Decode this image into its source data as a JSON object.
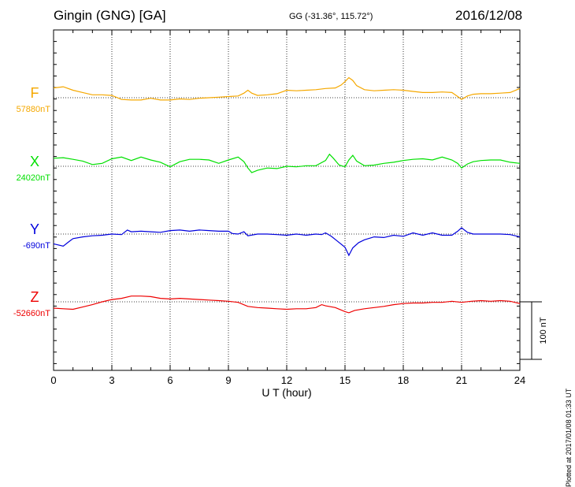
{
  "header": {
    "station": "Gingin (GNG)  [GA]",
    "coordinates": "GG (-31.36°, 115.72°)",
    "date": "2016/12/08"
  },
  "footer": {
    "plotted": "Plotted at 2017/01/08 01:33 UT"
  },
  "chart_data": {
    "type": "line",
    "title": "Gingin (GNG)  [GA]",
    "xlabel": "U T (hour)",
    "xlim": [
      0,
      24
    ],
    "x_ticks": [
      "0",
      "3",
      "6",
      "9",
      "12",
      "15",
      "18",
      "21",
      "24"
    ],
    "scale_bar": {
      "label": "100 nT",
      "value": 100
    },
    "grid": true,
    "series": [
      {
        "name": "F",
        "baseline_label": "57880nT",
        "baseline": 57880,
        "color": "#f5a800",
        "points": [
          [
            0,
            57897
          ],
          [
            0.5,
            57899
          ],
          [
            1,
            57893
          ],
          [
            1.5,
            57889
          ],
          [
            2,
            57885
          ],
          [
            2.5,
            57885
          ],
          [
            3,
            57884
          ],
          [
            3.5,
            57877
          ],
          [
            4,
            57876
          ],
          [
            4.5,
            57876
          ],
          [
            5,
            57879
          ],
          [
            5.5,
            57876
          ],
          [
            6,
            57876
          ],
          [
            6.5,
            57878
          ],
          [
            7,
            57877
          ],
          [
            7.5,
            57879
          ],
          [
            8,
            57880
          ],
          [
            8.5,
            57881
          ],
          [
            9,
            57882
          ],
          [
            9.5,
            57883
          ],
          [
            9.8,
            57888
          ],
          [
            10,
            57893
          ],
          [
            10.2,
            57888
          ],
          [
            10.5,
            57884
          ],
          [
            11,
            57885
          ],
          [
            11.5,
            57887
          ],
          [
            12,
            57893
          ],
          [
            12.5,
            57892
          ],
          [
            13,
            57893
          ],
          [
            13.5,
            57894
          ],
          [
            14,
            57896
          ],
          [
            14.5,
            57897
          ],
          [
            14.8,
            57902
          ],
          [
            15,
            57908
          ],
          [
            15.2,
            57915
          ],
          [
            15.4,
            57910
          ],
          [
            15.6,
            57901
          ],
          [
            16,
            57894
          ],
          [
            16.5,
            57892
          ],
          [
            17,
            57893
          ],
          [
            17.5,
            57894
          ],
          [
            18,
            57893
          ],
          [
            18.5,
            57891
          ],
          [
            19,
            57889
          ],
          [
            19.5,
            57889
          ],
          [
            20,
            57890
          ],
          [
            20.5,
            57889
          ],
          [
            20.8,
            57882
          ],
          [
            21,
            57877
          ],
          [
            21.3,
            57883
          ],
          [
            21.6,
            57886
          ],
          [
            22,
            57887
          ],
          [
            22.5,
            57887
          ],
          [
            23,
            57888
          ],
          [
            23.5,
            57889
          ],
          [
            24,
            57896
          ]
        ]
      },
      {
        "name": "X",
        "baseline_label": "24020nT",
        "baseline": 24020,
        "color": "#00e000",
        "points": [
          [
            0,
            24034
          ],
          [
            0.5,
            24035
          ],
          [
            1,
            24032
          ],
          [
            1.5,
            24029
          ],
          [
            2,
            24023
          ],
          [
            2.5,
            24025
          ],
          [
            3,
            24033
          ],
          [
            3.5,
            24036
          ],
          [
            4,
            24030
          ],
          [
            4.5,
            24036
          ],
          [
            5,
            24031
          ],
          [
            5.5,
            24027
          ],
          [
            6,
            24019
          ],
          [
            6.5,
            24028
          ],
          [
            7,
            24032
          ],
          [
            7.5,
            24032
          ],
          [
            8,
            24031
          ],
          [
            8.5,
            24025
          ],
          [
            9,
            24031
          ],
          [
            9.5,
            24036
          ],
          [
            9.8,
            24028
          ],
          [
            10,
            24017
          ],
          [
            10.2,
            24009
          ],
          [
            10.5,
            24013
          ],
          [
            11,
            24017
          ],
          [
            11.5,
            24016
          ],
          [
            12,
            24020
          ],
          [
            12.5,
            24019
          ],
          [
            13,
            24021
          ],
          [
            13.5,
            24021
          ],
          [
            14,
            24030
          ],
          [
            14.2,
            24041
          ],
          [
            14.4,
            24034
          ],
          [
            14.7,
            24022
          ],
          [
            15,
            24019
          ],
          [
            15.2,
            24031
          ],
          [
            15.4,
            24039
          ],
          [
            15.6,
            24029
          ],
          [
            16,
            24021
          ],
          [
            16.5,
            24022
          ],
          [
            17,
            24025
          ],
          [
            17.5,
            24027
          ],
          [
            18,
            24030
          ],
          [
            18.5,
            24032
          ],
          [
            19,
            24033
          ],
          [
            19.5,
            24031
          ],
          [
            20,
            24036
          ],
          [
            20.5,
            24031
          ],
          [
            20.8,
            24025
          ],
          [
            21,
            24017
          ],
          [
            21.3,
            24024
          ],
          [
            21.6,
            24028
          ],
          [
            22,
            24030
          ],
          [
            22.5,
            24031
          ],
          [
            23,
            24031
          ],
          [
            23.5,
            24027
          ],
          [
            24,
            24025
          ]
        ]
      },
      {
        "name": "Y",
        "baseline_label": "-690nT",
        "baseline": -690,
        "color": "#0000dd",
        "points": [
          [
            0,
            -707
          ],
          [
            0.5,
            -711
          ],
          [
            0.8,
            -703
          ],
          [
            1,
            -698
          ],
          [
            1.5,
            -695
          ],
          [
            2,
            -693
          ],
          [
            2.5,
            -692
          ],
          [
            3,
            -690
          ],
          [
            3.5,
            -691
          ],
          [
            3.8,
            -683
          ],
          [
            4,
            -686
          ],
          [
            4.5,
            -685
          ],
          [
            5,
            -686
          ],
          [
            5.5,
            -687
          ],
          [
            6,
            -684
          ],
          [
            6.5,
            -683
          ],
          [
            7,
            -685
          ],
          [
            7.5,
            -683
          ],
          [
            8,
            -684
          ],
          [
            8.5,
            -685
          ],
          [
            9,
            -685
          ],
          [
            9.2,
            -689
          ],
          [
            9.5,
            -690
          ],
          [
            9.8,
            -686
          ],
          [
            10,
            -693
          ],
          [
            10.5,
            -690
          ],
          [
            11,
            -690
          ],
          [
            11.5,
            -691
          ],
          [
            12,
            -692
          ],
          [
            12.5,
            -690
          ],
          [
            13,
            -692
          ],
          [
            13.5,
            -690
          ],
          [
            13.8,
            -691
          ],
          [
            14,
            -688
          ],
          [
            14.3,
            -694
          ],
          [
            14.6,
            -702
          ],
          [
            15,
            -713
          ],
          [
            15.2,
            -727
          ],
          [
            15.4,
            -714
          ],
          [
            15.7,
            -705
          ],
          [
            16,
            -700
          ],
          [
            16.5,
            -695
          ],
          [
            17,
            -696
          ],
          [
            17.5,
            -692
          ],
          [
            18,
            -694
          ],
          [
            18.5,
            -688
          ],
          [
            19,
            -692
          ],
          [
            19.5,
            -688
          ],
          [
            20,
            -692
          ],
          [
            20.5,
            -692
          ],
          [
            20.8,
            -685
          ],
          [
            21,
            -679
          ],
          [
            21.3,
            -687
          ],
          [
            21.6,
            -690
          ],
          [
            22,
            -690
          ],
          [
            22.5,
            -690
          ],
          [
            23,
            -690
          ],
          [
            23.5,
            -691
          ],
          [
            24,
            -695
          ]
        ]
      },
      {
        "name": "Z",
        "baseline_label": "-52660nT",
        "baseline": -52660,
        "color": "#ee0000",
        "points": [
          [
            0,
            -52671
          ],
          [
            0.5,
            -52672
          ],
          [
            1,
            -52673
          ],
          [
            1.5,
            -52669
          ],
          [
            2,
            -52665
          ],
          [
            2.5,
            -52660
          ],
          [
            3,
            -52656
          ],
          [
            3.5,
            -52654
          ],
          [
            4,
            -52650
          ],
          [
            4.5,
            -52650
          ],
          [
            5,
            -52651
          ],
          [
            5.5,
            -52654
          ],
          [
            6,
            -52655
          ],
          [
            6.5,
            -52654
          ],
          [
            7,
            -52655
          ],
          [
            7.5,
            -52656
          ],
          [
            8,
            -52657
          ],
          [
            8.5,
            -52658
          ],
          [
            9,
            -52659
          ],
          [
            9.5,
            -52661
          ],
          [
            10,
            -52668
          ],
          [
            10.5,
            -52670
          ],
          [
            11,
            -52671
          ],
          [
            11.5,
            -52672
          ],
          [
            12,
            -52673
          ],
          [
            12.5,
            -52672
          ],
          [
            13,
            -52672
          ],
          [
            13.5,
            -52670
          ],
          [
            13.8,
            -52665
          ],
          [
            14,
            -52667
          ],
          [
            14.5,
            -52670
          ],
          [
            15,
            -52677
          ],
          [
            15.2,
            -52679
          ],
          [
            15.5,
            -52675
          ],
          [
            16,
            -52672
          ],
          [
            16.5,
            -52670
          ],
          [
            17,
            -52668
          ],
          [
            17.5,
            -52665
          ],
          [
            18,
            -52663
          ],
          [
            18.5,
            -52662
          ],
          [
            19,
            -52662
          ],
          [
            19.5,
            -52661
          ],
          [
            20,
            -52661
          ],
          [
            20.5,
            -52659
          ],
          [
            21,
            -52661
          ],
          [
            21.5,
            -52659
          ],
          [
            22,
            -52658
          ],
          [
            22.5,
            -52659
          ],
          [
            23,
            -52658
          ],
          [
            23.5,
            -52659
          ],
          [
            24,
            -52663
          ]
        ]
      }
    ]
  }
}
